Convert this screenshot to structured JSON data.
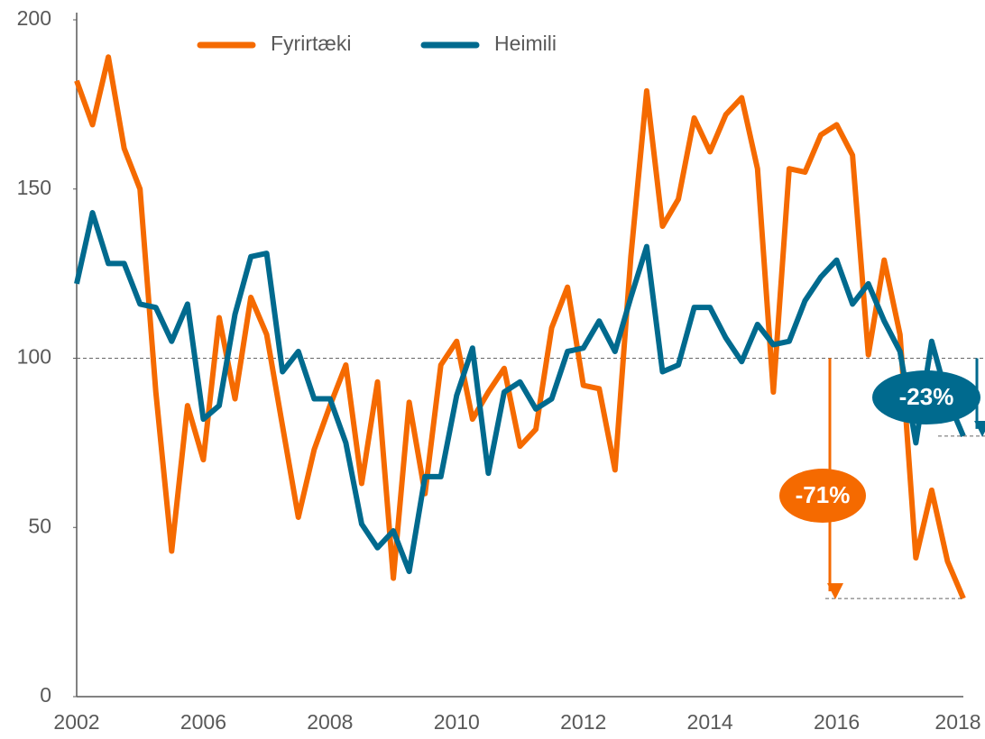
{
  "chart_data": {
    "type": "line",
    "categories": [
      "2002",
      null,
      null,
      null,
      null,
      null,
      null,
      null,
      "2006",
      null,
      null,
      null,
      null,
      null,
      null,
      null,
      "2008",
      null,
      null,
      null,
      null,
      null,
      null,
      null,
      "2010",
      null,
      null,
      null,
      null,
      null,
      null,
      null,
      "2012",
      null,
      null,
      null,
      null,
      null,
      null,
      null,
      "2014",
      null,
      null,
      null,
      null,
      null,
      null,
      null,
      "2016",
      null,
      null,
      null,
      null,
      null,
      null,
      null,
      "2018"
    ],
    "series": [
      {
        "name": "Fyrirtæki",
        "color": "#f56a00",
        "values": [
          182,
          169,
          189,
          162,
          150,
          90,
          43,
          86,
          70,
          112,
          88,
          118,
          107,
          80,
          53,
          73,
          86,
          98,
          63,
          93,
          35,
          87,
          60,
          98,
          105,
          82,
          90,
          97,
          74,
          79,
          109,
          121,
          92,
          91,
          67,
          130,
          179,
          139,
          147,
          171,
          161,
          172,
          177,
          156,
          90,
          156,
          155,
          166,
          169,
          160,
          101,
          129,
          107,
          41,
          61,
          40,
          29
        ]
      },
      {
        "name": "Heimili",
        "color": "#006a8e",
        "values": [
          122,
          143,
          128,
          128,
          116,
          115,
          105,
          116,
          82,
          86,
          113,
          130,
          131,
          96,
          102,
          88,
          88,
          75,
          51,
          44,
          49,
          37,
          65,
          65,
          89,
          103,
          66,
          90,
          93,
          85,
          88,
          102,
          103,
          111,
          102,
          118,
          133,
          96,
          98,
          115,
          115,
          106,
          99,
          110,
          104,
          105,
          117,
          124,
          129,
          116,
          122,
          111,
          102,
          75,
          105,
          88,
          77
        ]
      }
    ],
    "ylim": [
      0,
      200
    ],
    "yticks": [
      0,
      50,
      100,
      150,
      200
    ],
    "grid": false,
    "reference_line": 100,
    "annotations": [
      "-71%",
      "-23%"
    ],
    "legend": "top"
  }
}
